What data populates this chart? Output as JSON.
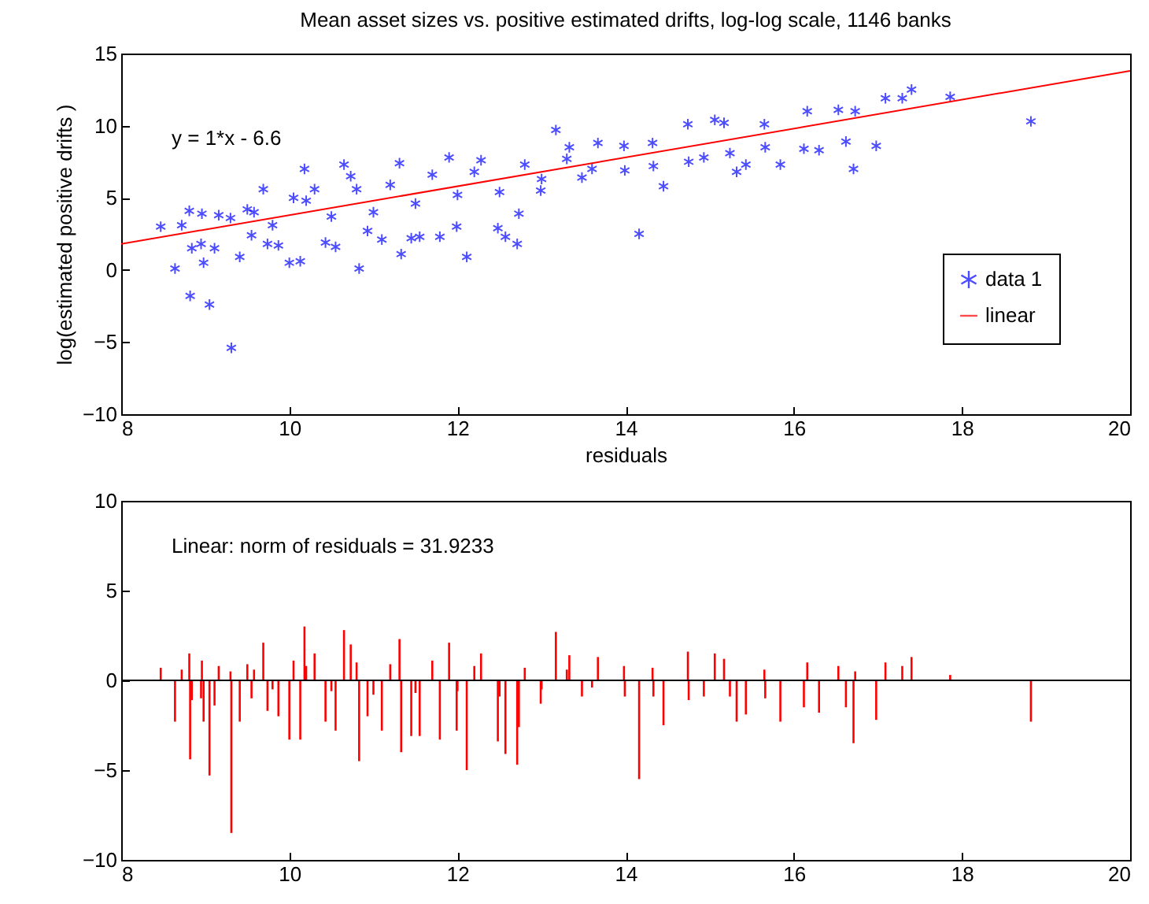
{
  "chart_data": [
    {
      "type": "scatter",
      "title": "Mean asset sizes vs. positive estimated drifts, log-log scale, 1146 banks",
      "xlabel": "residuals",
      "ylabel": "log(estimated positive drifts )",
      "x": [
        8.47,
        8.64,
        8.72,
        8.81,
        8.82,
        8.84,
        8.95,
        8.96,
        8.98,
        9.05,
        9.11,
        9.16,
        9.3,
        9.31,
        9.41,
        9.5,
        9.55,
        9.58,
        9.69,
        9.74,
        9.8,
        9.87,
        10.0,
        10.05,
        10.13,
        10.18,
        10.2,
        10.3,
        10.43,
        10.5,
        10.55,
        10.65,
        10.73,
        10.8,
        10.83,
        10.93,
        11.0,
        11.1,
        11.2,
        11.31,
        11.33,
        11.45,
        11.5,
        11.55,
        11.7,
        11.79,
        11.9,
        11.99,
        12.0,
        12.11,
        12.2,
        12.28,
        12.48,
        12.5,
        12.57,
        12.71,
        12.73,
        12.8,
        12.99,
        13.0,
        13.17,
        13.3,
        13.33,
        13.48,
        13.6,
        13.67,
        13.98,
        13.99,
        14.16,
        14.32,
        14.33,
        14.45,
        14.74,
        14.75,
        14.93,
        15.06,
        15.17,
        15.24,
        15.32,
        15.43,
        15.65,
        15.66,
        15.84,
        16.12,
        16.16,
        16.3,
        16.53,
        16.62,
        16.71,
        16.73,
        16.98,
        17.09,
        17.29,
        17.4,
        17.86,
        18.82
      ],
      "series": [
        {
          "name": "data 1",
          "color": "#0000ff",
          "marker": "cross",
          "values": [
            3.0,
            0.1,
            3.1,
            4.1,
            -1.8,
            1.5,
            1.8,
            3.9,
            0.5,
            -2.4,
            1.5,
            3.8,
            3.6,
            -5.4,
            0.9,
            4.2,
            2.4,
            4.0,
            5.6,
            1.8,
            3.1,
            1.7,
            0.5,
            5.0,
            0.6,
            7.0,
            4.8,
            5.6,
            1.9,
            3.7,
            1.6,
            7.3,
            6.5,
            5.6,
            0.1,
            2.7,
            4.0,
            2.1,
            5.9,
            7.4,
            1.1,
            2.2,
            4.6,
            2.3,
            6.6,
            2.3,
            7.8,
            3.0,
            5.2,
            0.9,
            6.8,
            7.6,
            2.9,
            5.4,
            2.3,
            1.8,
            3.9,
            7.3,
            5.5,
            6.3,
            9.7,
            7.7,
            8.5,
            6.4,
            7.0,
            8.8,
            8.6,
            6.9,
            2.5,
            8.8,
            7.2,
            5.8,
            10.1,
            7.5,
            7.8,
            10.4,
            10.2,
            8.1,
            6.8,
            7.3,
            10.1,
            8.5,
            7.3,
            8.4,
            11.0,
            8.3,
            11.1,
            8.9,
            7.0,
            11.0,
            8.6,
            11.9,
            11.9,
            12.5,
            12.0,
            10.3
          ]
        },
        {
          "name": "linear",
          "type": "line",
          "color": "#ff0000",
          "x": [
            8,
            20
          ],
          "values": [
            1.8,
            13.8
          ]
        }
      ],
      "annotations": [
        "y = 1*x - 6.6"
      ],
      "xlim": [
        8,
        20
      ],
      "ylim": [
        -10,
        15
      ],
      "xticks": [
        8,
        10,
        12,
        14,
        16,
        18,
        20
      ],
      "yticks": [
        -10,
        -5,
        0,
        5,
        10,
        15
      ],
      "legend": "bottom right"
    },
    {
      "type": "bar",
      "x": [
        8.47,
        8.64,
        8.72,
        8.81,
        8.82,
        8.84,
        8.95,
        8.96,
        8.98,
        9.05,
        9.11,
        9.16,
        9.3,
        9.31,
        9.41,
        9.5,
        9.55,
        9.58,
        9.69,
        9.74,
        9.8,
        9.87,
        10.0,
        10.05,
        10.13,
        10.18,
        10.2,
        10.3,
        10.43,
        10.5,
        10.55,
        10.65,
        10.73,
        10.8,
        10.83,
        10.93,
        11.0,
        11.1,
        11.2,
        11.31,
        11.33,
        11.45,
        11.5,
        11.55,
        11.7,
        11.79,
        11.9,
        11.99,
        12.0,
        12.11,
        12.2,
        12.28,
        12.48,
        12.5,
        12.57,
        12.71,
        12.73,
        12.8,
        12.99,
        13.0,
        13.17,
        13.3,
        13.33,
        13.48,
        13.6,
        13.67,
        13.98,
        13.99,
        14.16,
        14.32,
        14.33,
        14.45,
        14.74,
        14.75,
        14.93,
        15.06,
        15.17,
        15.24,
        15.32,
        15.43,
        15.65,
        15.66,
        15.84,
        16.12,
        16.16,
        16.3,
        16.53,
        16.62,
        16.71,
        16.73,
        16.98,
        17.09,
        17.29,
        17.4,
        17.86,
        18.82
      ],
      "series": [
        {
          "color": "#ff0000",
          "values": [
            0.7,
            -2.3,
            0.6,
            1.5,
            -4.4,
            -1.1,
            -1.0,
            1.1,
            -2.3,
            -5.3,
            -1.4,
            0.8,
            0.5,
            -8.5,
            -2.3,
            0.9,
            -1.0,
            0.6,
            2.1,
            -1.7,
            -0.5,
            -2.0,
            -3.3,
            1.1,
            -3.3,
            3.0,
            0.8,
            1.5,
            -2.3,
            -0.6,
            -2.8,
            2.8,
            2.0,
            1.0,
            -4.5,
            -2.0,
            -0.8,
            -2.8,
            0.9,
            2.3,
            -4.0,
            -3.1,
            -0.7,
            -3.1,
            1.1,
            -3.3,
            2.1,
            -2.8,
            -0.6,
            -5.0,
            0.8,
            1.5,
            -3.4,
            -0.9,
            -4.1,
            -4.7,
            -2.6,
            0.7,
            -1.3,
            -0.5,
            2.7,
            0.6,
            1.4,
            -0.9,
            -0.4,
            1.3,
            0.8,
            -0.9,
            -5.5,
            0.7,
            -0.9,
            -2.5,
            1.6,
            -1.1,
            -0.9,
            1.5,
            1.2,
            -0.9,
            -2.3,
            -1.9,
            0.6,
            -1.0,
            -2.3,
            -1.5,
            1.0,
            -1.8,
            0.8,
            -1.5,
            -3.5,
            0.5,
            -2.2,
            1.0,
            0.8,
            1.3,
            0.3,
            -2.3
          ]
        }
      ],
      "annotations": [
        "Linear: norm of residuals = 31.9233"
      ],
      "xlim": [
        8,
        20
      ],
      "ylim": [
        -10,
        10
      ],
      "xticks": [
        8,
        10,
        12,
        14,
        16,
        18,
        20
      ],
      "yticks": [
        -10,
        -5,
        0,
        5,
        10
      ],
      "ref_lines": [
        {
          "axis": "y",
          "value": 0,
          "color": "#000000"
        }
      ]
    }
  ]
}
